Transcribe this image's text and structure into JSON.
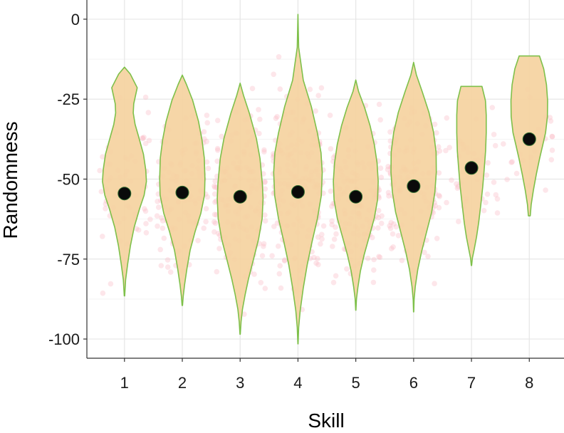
{
  "chart_data": {
    "type": "violin",
    "xlabel": "Skill",
    "ylabel": "Randomness",
    "categories": [
      "1",
      "2",
      "3",
      "4",
      "5",
      "6",
      "7",
      "8"
    ],
    "y_ticks": [
      "0",
      "-25",
      "-50",
      "-75",
      "-100"
    ],
    "y_tick_values": [
      0,
      -25,
      -50,
      -75,
      -100
    ],
    "xlim": [
      0.35,
      8.6
    ],
    "ylim": [
      -106,
      6
    ],
    "grid": true,
    "means": [
      -54.5,
      -54.2,
      -55.5,
      -54,
      -55.5,
      -52.2,
      -46.5,
      -37.5
    ],
    "ranges": [
      {
        "min": -86.5,
        "max": -15
      },
      {
        "min": -89.5,
        "max": -17.5
      },
      {
        "min": -98.5,
        "max": -20
      },
      {
        "min": -101.5,
        "max": 1.5
      },
      {
        "min": -91,
        "max": -19
      },
      {
        "min": -91.5,
        "max": -13.5
      },
      {
        "min": -77,
        "max": -21
      },
      {
        "min": -61.5,
        "max": -11.5
      }
    ],
    "colors": {
      "violin_fill": "#f5d39f",
      "violin_stroke": "#7ec04a",
      "mean_point": "#0a0a0a",
      "jitter_points": "#f8b8c4",
      "grid": "#e6e6e6",
      "axis": "#333333"
    }
  }
}
